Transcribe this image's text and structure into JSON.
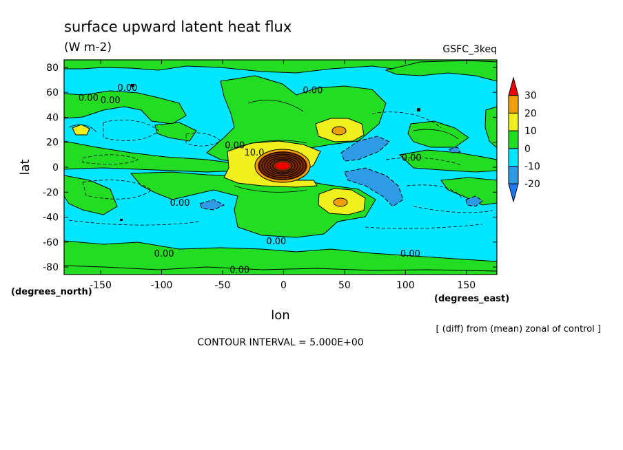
{
  "chart_data": {
    "type": "heatmap",
    "title": "surface upward latent heat flux",
    "subtitle": "(W m-2)",
    "dataset_label": "GSFC_3keq",
    "xlabel": "lon",
    "ylabel": "lat",
    "x_units_label": "(degrees_east)",
    "y_units_label": "(degrees_north)",
    "xlim": [
      -180,
      175
    ],
    "ylim": [
      -86,
      86
    ],
    "x_ticks": [
      -150,
      -100,
      -50,
      0,
      50,
      100,
      150
    ],
    "x_tick_labels": [
      "-150",
      "-100",
      "-50",
      "0",
      "50",
      "100",
      "150"
    ],
    "y_ticks": [
      -80,
      -60,
      -40,
      -20,
      0,
      20,
      40,
      60,
      80
    ],
    "y_tick_labels": [
      "-80",
      "-60",
      "-40",
      "-20",
      "0",
      "20",
      "40",
      "60",
      "80"
    ],
    "colorbar": {
      "levels": [
        -20,
        -10,
        0,
        10,
        20,
        30
      ],
      "tick_labels": [
        "-20",
        "-10",
        "0",
        "10",
        "20",
        "30"
      ],
      "bins": [
        {
          "range": "< -20",
          "color": "#1e78f0"
        },
        {
          "range": "-20 to -10",
          "color": "#2f9be6"
        },
        {
          "range": "-10 to 0",
          "color": "#00e6ff"
        },
        {
          "range": "0 to 10",
          "color": "#22dd22"
        },
        {
          "range": "10 to 20",
          "color": "#f0f01e"
        },
        {
          "range": "20 to 30",
          "color": "#f0a000"
        },
        {
          "range": "> 30",
          "color": "#f00000"
        }
      ]
    },
    "contour_labels": [
      {
        "text": "0.00",
        "lon": -128,
        "lat": 64
      },
      {
        "text": "0.00",
        "lon": -160,
        "lat": 56
      },
      {
        "text": "0.00",
        "lon": -142,
        "lat": 54
      },
      {
        "text": "0.00",
        "lon": 24,
        "lat": 62
      },
      {
        "text": "0.00",
        "lon": -40,
        "lat": 18
      },
      {
        "text": "10.0",
        "lon": -24,
        "lat": 12
      },
      {
        "text": "0.00",
        "lon": 105,
        "lat": 8
      },
      {
        "text": "0.00",
        "lon": -85,
        "lat": -28
      },
      {
        "text": "0.00",
        "lon": -6,
        "lat": -59
      },
      {
        "text": "0.00",
        "lon": -98,
        "lat": -69
      },
      {
        "text": "0.00",
        "lon": 104,
        "lat": -69
      },
      {
        "text": "0.00",
        "lon": -36,
        "lat": -82
      }
    ],
    "note": "[ (diff) from (mean) zonal of control ]",
    "contour_interval": "CONTOUR INTERVAL = 5.000E+00"
  }
}
